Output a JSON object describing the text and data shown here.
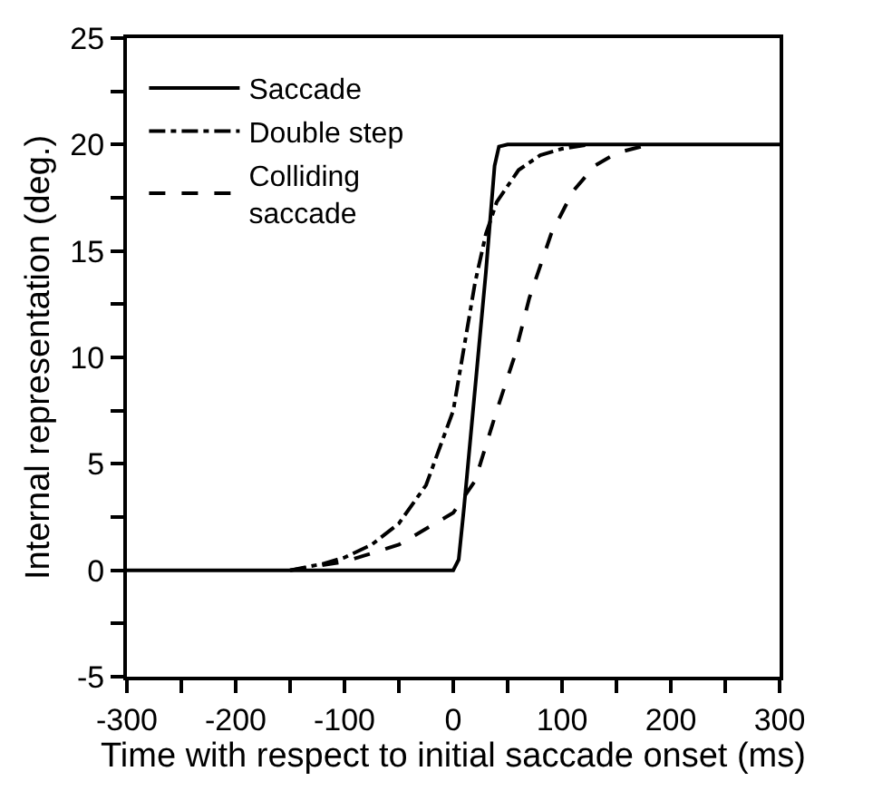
{
  "chart_data": {
    "type": "line",
    "xlabel": "Time with respect to initial saccade onset (ms)",
    "ylabel": "Internal representation (deg.)",
    "xlim": [
      -300,
      300
    ],
    "ylim": [
      -5,
      25
    ],
    "xticks": [
      -300,
      {
        "value": -250,
        "label": null
      },
      -200,
      {
        "value": -150,
        "label": null
      },
      -100,
      {
        "value": -50,
        "label": null
      },
      0,
      {
        "value": 50,
        "label": null
      },
      100,
      {
        "value": 150,
        "label": null
      },
      200,
      {
        "value": 250,
        "label": null
      },
      300
    ],
    "yticks": [
      -5,
      {
        "value": -2.5,
        "label": null
      },
      0,
      {
        "value": 2.5,
        "label": null
      },
      5,
      {
        "value": 7.5,
        "label": null
      },
      10,
      {
        "value": 12.5,
        "label": null
      },
      15,
      {
        "value": 17.5,
        "label": null
      },
      20,
      {
        "value": 22.5,
        "label": null
      },
      25
    ],
    "legend": "top left",
    "marker": "none",
    "series": [
      {
        "name": "Saccade",
        "color": "#000000",
        "line_style": "solid",
        "x": [
          -300,
          0,
          5,
          10,
          20,
          30,
          38,
          42,
          50,
          300
        ],
        "values": [
          0,
          0,
          0.5,
          3,
          8.5,
          14,
          19,
          19.9,
          20,
          20
        ]
      },
      {
        "name": "Double step",
        "color": "#000000",
        "line_style": "dashdot",
        "x": [
          -150,
          -120,
          -100,
          -75,
          -50,
          -25,
          0,
          10,
          20,
          30,
          40,
          60,
          80,
          100,
          125
        ],
        "values": [
          0,
          0.3,
          0.6,
          1.2,
          2.2,
          4,
          7.5,
          10.5,
          13.5,
          15.8,
          17.3,
          18.8,
          19.5,
          19.8,
          20
        ]
      },
      {
        "name": "Colliding\nsaccade",
        "color": "#000000",
        "line_style": "dashed",
        "x": [
          -150,
          -100,
          -50,
          0,
          20,
          40,
          56,
          70,
          90,
          110,
          130,
          150,
          180
        ],
        "values": [
          0,
          0.4,
          1.2,
          2.7,
          4.2,
          7.5,
          10,
          12.8,
          15.8,
          17.8,
          19,
          19.6,
          20
        ]
      }
    ]
  }
}
